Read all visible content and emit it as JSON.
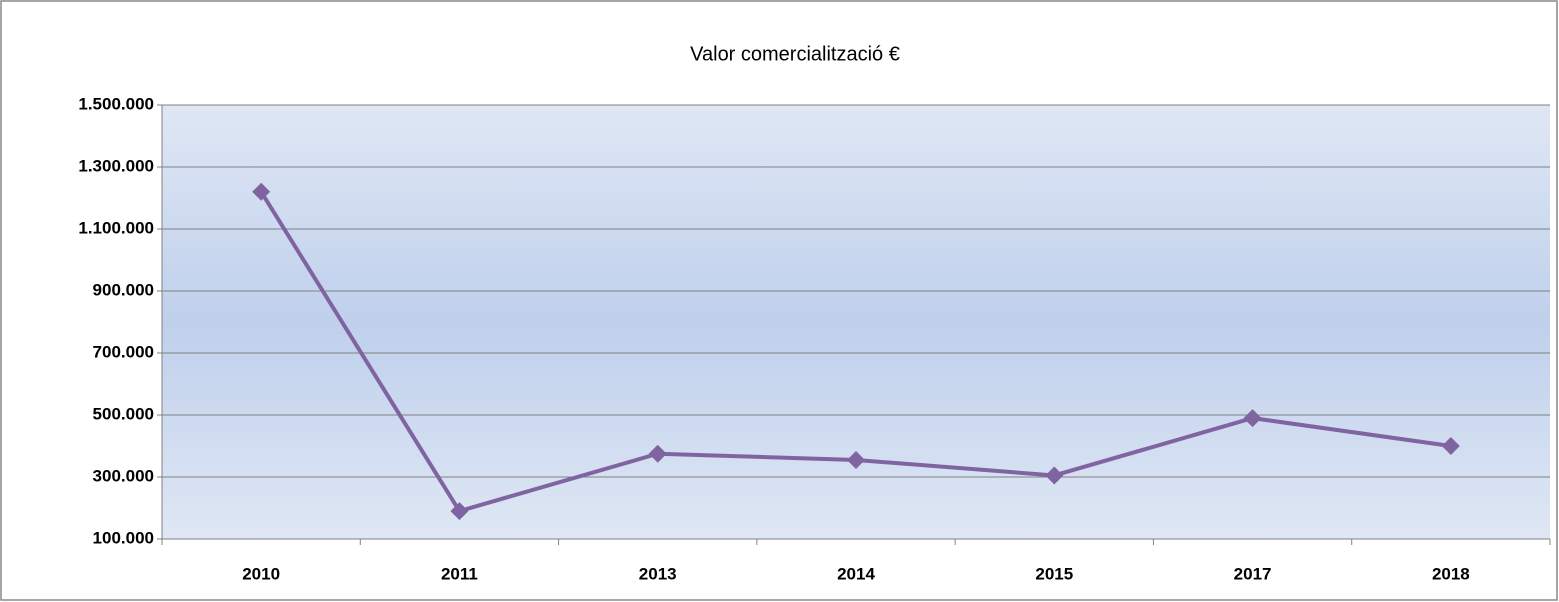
{
  "chart_data": {
    "type": "line",
    "title": "Valor comercialització  €",
    "categories": [
      "2010",
      "2011",
      "2013",
      "2014",
      "2015",
      "2017",
      "2018"
    ],
    "series": [
      {
        "name": "Valor comercialització",
        "color": "#8064a2",
        "values": [
          1220000,
          190000,
          375000,
          355000,
          305000,
          490000,
          400000
        ]
      }
    ],
    "ylim": [
      100000,
      1500000
    ],
    "yticks": [
      {
        "value": 100000,
        "label": "100.000"
      },
      {
        "value": 300000,
        "label": "300.000"
      },
      {
        "value": 500000,
        "label": "500.000"
      },
      {
        "value": 700000,
        "label": "700.000"
      },
      {
        "value": 900000,
        "label": "900.000"
      },
      {
        "value": 1100000,
        "label": "1.100.000"
      },
      {
        "value": 1300000,
        "label": "1.300.000"
      },
      {
        "value": 1500000,
        "label": "1.500.000"
      }
    ],
    "grid": true
  }
}
